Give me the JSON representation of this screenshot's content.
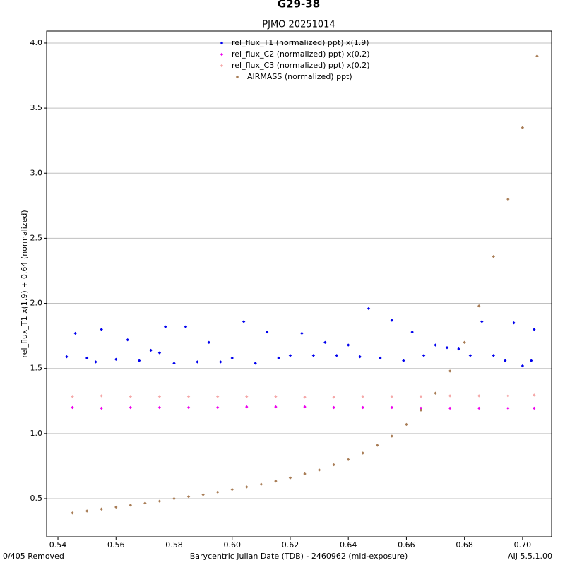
{
  "chart_data": {
    "type": "scatter",
    "title": "G29-38",
    "subtitle": "PJMO 20251014",
    "x_label": "Barycentric Julian Date (TDB) - 2460962 (mid-exposure)",
    "y_label": "rel_flux_T1 x(1.9) + 0.64 (normalized)",
    "footer_left": "0/405 Removed",
    "footer_right": "AIJ 5.5.1.00",
    "xlim": [
      0.5361,
      0.71
    ],
    "ylim": [
      0.207,
      4.092
    ],
    "xticks": [
      0.54,
      0.56,
      0.58,
      {
        "value": 0.6,
        "label": "0.60"
      },
      0.62,
      0.64,
      0.66,
      0.68,
      {
        "value": 0.7,
        "label": "0.70"
      }
    ],
    "yticks": [
      0.5,
      {
        "value": 1,
        "label": "1.0"
      },
      1.5,
      {
        "value": 2,
        "label": "2.0"
      },
      2.5,
      {
        "value": 3,
        "label": "3.0"
      },
      3.5,
      {
        "value": 4,
        "label": "4.0"
      }
    ],
    "grid": true,
    "series": [
      {
        "name": "rel_flux_T1 (normalized) ppt) x(1.9)",
        "color": "#0000ee",
        "x": [
          0.543,
          0.546,
          0.55,
          0.553,
          0.555,
          0.56,
          0.564,
          0.568,
          0.572,
          0.575,
          0.577,
          0.58,
          0.584,
          0.588,
          0.592,
          0.596,
          0.6,
          0.604,
          0.608,
          0.612,
          0.616,
          0.62,
          0.624,
          0.628,
          0.632,
          0.636,
          0.64,
          0.644,
          0.647,
          0.651,
          0.655,
          0.659,
          0.662,
          0.666,
          0.67,
          0.674,
          0.678,
          0.682,
          0.686,
          0.69,
          0.694,
          0.697,
          0.7,
          0.703,
          0.704
        ],
        "values": [
          1.59,
          1.77,
          1.58,
          1.55,
          1.8,
          1.57,
          1.72,
          1.56,
          1.64,
          1.62,
          1.82,
          1.54,
          1.82,
          1.55,
          1.7,
          1.55,
          1.58,
          1.86,
          1.54,
          1.78,
          1.58,
          1.6,
          1.77,
          1.6,
          1.7,
          1.6,
          1.68,
          1.59,
          1.96,
          1.58,
          1.87,
          1.56,
          1.78,
          1.6,
          1.68,
          1.66,
          1.65,
          1.6,
          1.86,
          1.6,
          1.56,
          1.85,
          1.52,
          1.56,
          1.8
        ]
      },
      {
        "name": "rel_flux_C2 (normalized) ppt) x(0.2)",
        "color": "#ee00ee",
        "x": [
          0.545,
          0.555,
          0.565,
          0.575,
          0.585,
          0.595,
          0.605,
          0.615,
          0.625,
          0.635,
          0.645,
          0.655,
          0.665,
          0.675,
          0.685,
          0.695,
          0.704
        ],
        "values": [
          1.2,
          1.195,
          1.2,
          1.2,
          1.2,
          1.2,
          1.205,
          1.205,
          1.205,
          1.2,
          1.2,
          1.2,
          1.195,
          1.195,
          1.195,
          1.195,
          1.195
        ]
      },
      {
        "name": "rel_flux_C3 (normalized) ppt) x(0.2)",
        "color": "#f5a8a8",
        "x": [
          0.545,
          0.555,
          0.565,
          0.575,
          0.585,
          0.595,
          0.605,
          0.615,
          0.625,
          0.635,
          0.645,
          0.655,
          0.665,
          0.675,
          0.685,
          0.695,
          0.704
        ],
        "values": [
          1.285,
          1.29,
          1.285,
          1.285,
          1.285,
          1.285,
          1.285,
          1.285,
          1.28,
          1.28,
          1.285,
          1.285,
          1.285,
          1.29,
          1.29,
          1.29,
          1.295
        ]
      },
      {
        "name": "AIRMASS (normalized) ppt)",
        "color": "#a87c55",
        "x": [
          0.545,
          0.55,
          0.555,
          0.56,
          0.565,
          0.57,
          0.575,
          0.58,
          0.585,
          0.59,
          0.595,
          0.6,
          0.605,
          0.61,
          0.615,
          0.62,
          0.625,
          0.63,
          0.635,
          0.64,
          0.645,
          0.65,
          0.655,
          0.66,
          0.665,
          0.67,
          0.675,
          0.68,
          0.685,
          0.69,
          0.695,
          0.7,
          0.705
        ],
        "values": [
          0.39,
          0.405,
          0.42,
          0.435,
          0.45,
          0.465,
          0.48,
          0.5,
          0.515,
          0.53,
          0.55,
          0.57,
          0.59,
          0.61,
          0.635,
          0.66,
          0.69,
          0.72,
          0.76,
          0.8,
          0.85,
          0.91,
          0.98,
          1.07,
          1.18,
          1.31,
          1.48,
          1.7,
          1.98,
          2.36,
          2.8,
          3.35,
          3.9
        ]
      }
    ]
  }
}
